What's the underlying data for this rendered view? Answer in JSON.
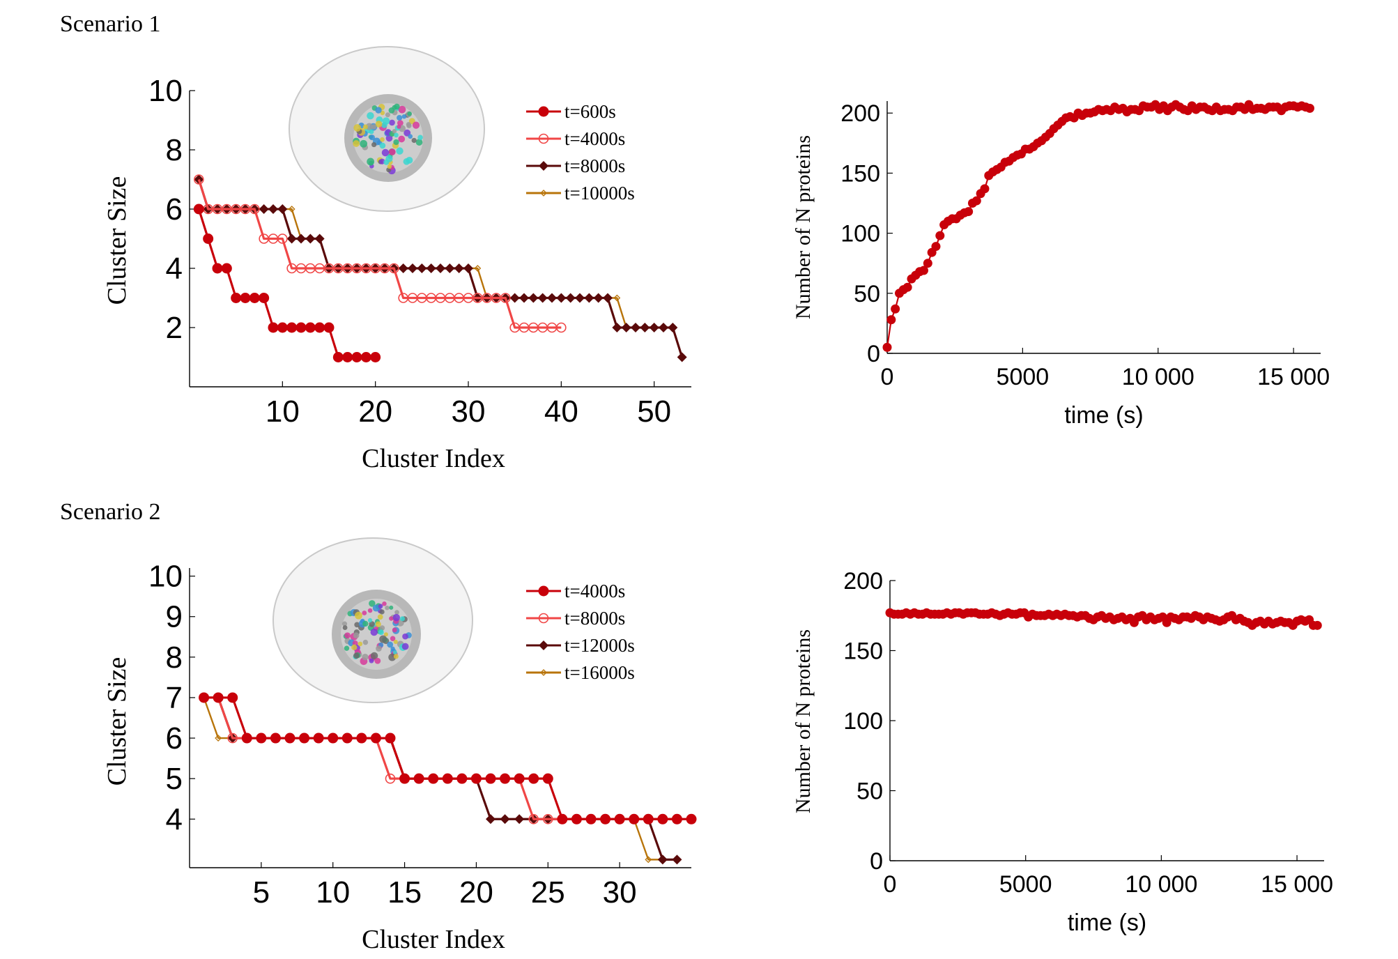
{
  "scenarios": [
    {
      "label": "Scenario 1"
    },
    {
      "label": "Scenario 2"
    }
  ],
  "colors": {
    "s1": "#c8000a",
    "s2": "#f04646",
    "s3": "#5a0a0a",
    "s4": "#b8740a",
    "timeseries": "#c8000a"
  },
  "chart_data": [
    {
      "id": "s1-cluster",
      "type": "line",
      "xlabel": "Cluster Index",
      "ylabel": "Cluster Size",
      "xlim": [
        0,
        54
      ],
      "ylim": [
        0,
        10
      ],
      "xticks": [
        10,
        20,
        30,
        40,
        50
      ],
      "yticks": [
        2,
        4,
        6,
        8,
        10
      ],
      "legend_position": "top-right",
      "series": [
        {
          "name": "t=600s",
          "marker": "filled-circle",
          "color": "#c8000a",
          "values": [
            6,
            5,
            4,
            4,
            3,
            3,
            3,
            3,
            2,
            2,
            2,
            2,
            2,
            2,
            2,
            1,
            1,
            1,
            1,
            1
          ]
        },
        {
          "name": "t=4000s",
          "marker": "open-circle",
          "color": "#f04646",
          "values": [
            7,
            6,
            6,
            6,
            6,
            6,
            6,
            5,
            5,
            5,
            4,
            4,
            4,
            4,
            4,
            4,
            4,
            4,
            4,
            4,
            4,
            4,
            3,
            3,
            3,
            3,
            3,
            3,
            3,
            3,
            3,
            3,
            3,
            3,
            2,
            2,
            2,
            2,
            2,
            2
          ]
        },
        {
          "name": "t=8000s",
          "marker": "filled-diamond",
          "color": "#5a0a0a",
          "values": [
            7,
            6,
            6,
            6,
            6,
            6,
            6,
            6,
            6,
            6,
            5,
            5,
            5,
            5,
            4,
            4,
            4,
            4,
            4,
            4,
            4,
            4,
            4,
            4,
            4,
            4,
            4,
            4,
            4,
            4,
            3,
            3,
            3,
            3,
            3,
            3,
            3,
            3,
            3,
            3,
            3,
            3,
            3,
            3,
            3,
            2,
            2,
            2,
            2,
            2,
            2,
            2,
            1
          ]
        },
        {
          "name": "t=10000s",
          "marker": "small-diamond",
          "color": "#b8740a",
          "values": [
            7,
            6,
            6,
            6,
            6,
            6,
            6,
            6,
            6,
            6,
            6,
            5,
            5,
            5,
            4,
            4,
            4,
            4,
            4,
            4,
            4,
            4,
            4,
            4,
            4,
            4,
            4,
            4,
            4,
            4,
            4,
            3,
            3,
            3,
            3,
            3,
            3,
            3,
            3,
            3,
            3,
            3,
            3,
            3,
            3,
            3,
            2,
            2,
            2,
            2,
            2,
            2,
            1
          ]
        }
      ]
    },
    {
      "id": "s1-proteins",
      "type": "scatter",
      "xlabel": "time (s)",
      "ylabel": "Number of N proteins",
      "xlim": [
        0,
        16000
      ],
      "ylim": [
        0,
        210
      ],
      "xticks": [
        0,
        5000,
        10000,
        15000
      ],
      "xtick_labels": [
        "0",
        "5000",
        "10 000",
        "15 000"
      ],
      "yticks": [
        0,
        50,
        100,
        150,
        200
      ],
      "color": "#c8000a",
      "x": [
        0,
        150,
        300,
        450,
        600,
        750,
        900,
        1050,
        1200,
        1350,
        1500,
        1650,
        1800,
        1950,
        2100,
        2250,
        2400,
        2550,
        2700,
        2850,
        3000,
        3150,
        3300,
        3450,
        3600,
        3750,
        3900,
        4050,
        4200,
        4350,
        4500,
        4650,
        4800,
        4950,
        5100,
        5250,
        5400,
        5550,
        5700,
        5850,
        6000,
        6150,
        6300,
        6450,
        6600,
        6750,
        6900,
        7050,
        7200,
        7350,
        7500,
        7650,
        7800,
        7950,
        8100,
        8250,
        8400,
        8550,
        8700,
        8850,
        9000,
        9150,
        9300,
        9450,
        9600,
        9750,
        9900,
        10050,
        10200,
        10350,
        10500,
        10650,
        10800,
        10950,
        11100,
        11250,
        11400,
        11550,
        11700,
        11850,
        12000,
        12150,
        12300,
        12450,
        12600,
        12750,
        12900,
        13050,
        13200,
        13350,
        13500,
        13650,
        13800,
        13950,
        14100,
        14250,
        14400,
        14550,
        14700,
        14850,
        15000,
        15150,
        15300,
        15450,
        15600
      ],
      "y": [
        5,
        28,
        37,
        50,
        53,
        55,
        62,
        65,
        68,
        69,
        75,
        84,
        89,
        98,
        107,
        110,
        112,
        112,
        115,
        117,
        118,
        125,
        127,
        133,
        137,
        148,
        151,
        153,
        155,
        159,
        160,
        163,
        165,
        166,
        170,
        170,
        172,
        175,
        177,
        180,
        183,
        187,
        190,
        193,
        196,
        197,
        196,
        200,
        198,
        200,
        200,
        201,
        203,
        202,
        203,
        202,
        205,
        203,
        204,
        201,
        203,
        203,
        202,
        206,
        205,
        205,
        207,
        203,
        206,
        202,
        205,
        207,
        205,
        203,
        202,
        206,
        203,
        205,
        205,
        203,
        202,
        205,
        202,
        203,
        203,
        202,
        205,
        205,
        203,
        207,
        203,
        204,
        204,
        203,
        205,
        205,
        205,
        202,
        205,
        206,
        206,
        205,
        206,
        205,
        204
      ]
    },
    {
      "id": "s2-cluster",
      "type": "line",
      "xlabel": "Cluster Index",
      "ylabel": "Cluster Size",
      "xlim": [
        0,
        35
      ],
      "ylim": [
        2.8,
        10.2
      ],
      "xticks": [
        5,
        10,
        15,
        20,
        25,
        30
      ],
      "yticks": [
        4,
        5,
        6,
        7,
        8,
        9,
        10
      ],
      "legend_position": "top-right",
      "series": [
        {
          "name": "t=4000s",
          "marker": "filled-circle",
          "color": "#c8000a",
          "values": [
            7,
            7,
            7,
            6,
            6,
            6,
            6,
            6,
            6,
            6,
            6,
            6,
            6,
            6,
            5,
            5,
            5,
            5,
            5,
            5,
            5,
            5,
            5,
            5,
            5,
            4,
            4,
            4,
            4,
            4,
            4,
            4,
            4,
            4,
            4
          ]
        },
        {
          "name": "t=8000s",
          "marker": "open-circle",
          "color": "#f04646",
          "values": [
            7,
            7,
            6,
            6,
            6,
            6,
            6,
            6,
            6,
            6,
            6,
            6,
            6,
            5,
            5,
            5,
            5,
            5,
            5,
            5,
            5,
            5,
            5,
            4,
            4,
            4,
            4,
            4,
            4,
            4,
            4,
            4,
            4,
            4
          ]
        },
        {
          "name": "t=12000s",
          "marker": "filled-diamond",
          "color": "#5a0a0a",
          "values": [
            7,
            7,
            6,
            6,
            6,
            6,
            6,
            6,
            6,
            6,
            6,
            6,
            6,
            6,
            5,
            5,
            5,
            5,
            5,
            5,
            4,
            4,
            4,
            4,
            4,
            4,
            4,
            4,
            4,
            4,
            4,
            4,
            3,
            3
          ]
        },
        {
          "name": "t=16000s",
          "marker": "small-diamond",
          "color": "#b8740a",
          "values": [
            7,
            6,
            6,
            6,
            6,
            6,
            6,
            6,
            6,
            6,
            6,
            6,
            6,
            6,
            5,
            5,
            5,
            5,
            5,
            5,
            4,
            4,
            4,
            4,
            4,
            4,
            4,
            4,
            4,
            4,
            4,
            3,
            3,
            3
          ]
        }
      ]
    },
    {
      "id": "s2-proteins",
      "type": "scatter",
      "xlabel": "time (s)",
      "ylabel": "Number of N proteins",
      "xlim": [
        0,
        16000
      ],
      "ylim": [
        0,
        200
      ],
      "xticks": [
        0,
        5000,
        10000,
        15000
      ],
      "xtick_labels": [
        "0",
        "5000",
        "10 000",
        "15 000"
      ],
      "yticks": [
        0,
        50,
        100,
        150,
        200
      ],
      "color": "#c8000a",
      "x": [
        0,
        150,
        300,
        450,
        600,
        750,
        900,
        1050,
        1200,
        1350,
        1500,
        1650,
        1800,
        1950,
        2100,
        2250,
        2400,
        2550,
        2700,
        2850,
        3000,
        3150,
        3300,
        3450,
        3600,
        3750,
        3900,
        4050,
        4200,
        4350,
        4500,
        4650,
        4800,
        4950,
        5100,
        5250,
        5400,
        5550,
        5700,
        5850,
        6000,
        6150,
        6300,
        6450,
        6600,
        6750,
        6900,
        7050,
        7200,
        7350,
        7500,
        7650,
        7800,
        7950,
        8100,
        8250,
        8400,
        8550,
        8700,
        8850,
        9000,
        9150,
        9300,
        9450,
        9600,
        9750,
        9900,
        10050,
        10200,
        10350,
        10500,
        10650,
        10800,
        10950,
        11100,
        11250,
        11400,
        11550,
        11700,
        11850,
        12000,
        12150,
        12300,
        12450,
        12600,
        12750,
        12900,
        13050,
        13200,
        13350,
        13500,
        13650,
        13800,
        13950,
        14100,
        14250,
        14400,
        14550,
        14700,
        14850,
        15000,
        15150,
        15300,
        15450,
        15600,
        15750
      ],
      "y": [
        177,
        176,
        176,
        176,
        177,
        176,
        177,
        176,
        176,
        177,
        176,
        176,
        176,
        176,
        177,
        176,
        177,
        177,
        176,
        177,
        177,
        177,
        176,
        176,
        176,
        177,
        176,
        175,
        176,
        177,
        176,
        176,
        177,
        177,
        174,
        176,
        175,
        175,
        175,
        176,
        175,
        176,
        175,
        176,
        175,
        175,
        174,
        175,
        175,
        173,
        172,
        174,
        175,
        173,
        174,
        172,
        173,
        174,
        172,
        173,
        170,
        174,
        175,
        172,
        174,
        172,
        173,
        174,
        170,
        174,
        173,
        172,
        174,
        174,
        173,
        175,
        174,
        172,
        174,
        173,
        172,
        171,
        172,
        174,
        175,
        172,
        173,
        171,
        170,
        168,
        170,
        171,
        169,
        171,
        169,
        170,
        171,
        170,
        170,
        168,
        171,
        172,
        171,
        172,
        168,
        168
      ]
    }
  ]
}
